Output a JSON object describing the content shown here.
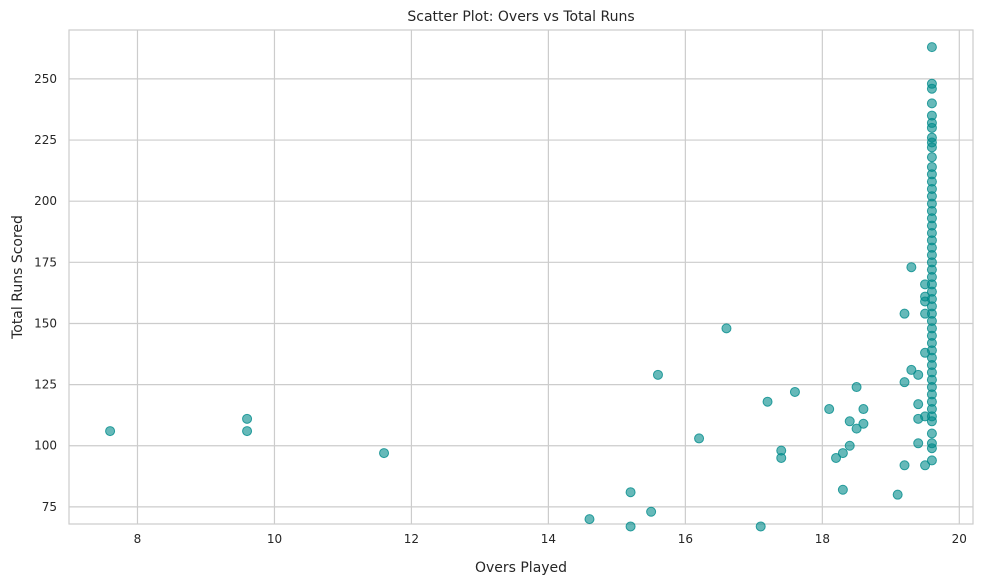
{
  "chart_data": {
    "type": "scatter",
    "title": "Scatter Plot: Overs vs Total Runs",
    "xlabel": "Overs Played",
    "ylabel": "Total Runs Scored",
    "xlim": [
      7,
      20.2
    ],
    "ylim": [
      68,
      270
    ],
    "xticks": [
      8,
      10,
      12,
      14,
      16,
      18,
      20
    ],
    "yticks": [
      75,
      100,
      125,
      150,
      175,
      200,
      225,
      250
    ],
    "grid": true,
    "point_color": "#008b8b",
    "point_alpha": 0.6,
    "points": [
      [
        7.6,
        106
      ],
      [
        9.6,
        111
      ],
      [
        9.6,
        106
      ],
      [
        11.6,
        97
      ],
      [
        14.6,
        70
      ],
      [
        15.2,
        81
      ],
      [
        15.2,
        67
      ],
      [
        15.5,
        73
      ],
      [
        15.6,
        129
      ],
      [
        16.2,
        103
      ],
      [
        16.6,
        148
      ],
      [
        17.1,
        67
      ],
      [
        17.2,
        118
      ],
      [
        17.4,
        98
      ],
      [
        17.4,
        95
      ],
      [
        17.6,
        122
      ],
      [
        18.1,
        115
      ],
      [
        18.2,
        95
      ],
      [
        18.3,
        97
      ],
      [
        18.3,
        82
      ],
      [
        18.4,
        110
      ],
      [
        18.4,
        100
      ],
      [
        18.5,
        124
      ],
      [
        18.5,
        107
      ],
      [
        18.6,
        115
      ],
      [
        18.6,
        109
      ],
      [
        19.1,
        80
      ],
      [
        19.2,
        154
      ],
      [
        19.2,
        126
      ],
      [
        19.2,
        92
      ],
      [
        19.3,
        173
      ],
      [
        19.3,
        131
      ],
      [
        19.4,
        129
      ],
      [
        19.4,
        117
      ],
      [
        19.4,
        111
      ],
      [
        19.4,
        101
      ],
      [
        19.5,
        166
      ],
      [
        19.5,
        161
      ],
      [
        19.5,
        159
      ],
      [
        19.5,
        154
      ],
      [
        19.5,
        138
      ],
      [
        19.5,
        112
      ],
      [
        19.5,
        92
      ],
      [
        19.6,
        263
      ],
      [
        19.6,
        248
      ],
      [
        19.6,
        246
      ],
      [
        19.6,
        240
      ],
      [
        19.6,
        235
      ],
      [
        19.6,
        232
      ],
      [
        19.6,
        230
      ],
      [
        19.6,
        226
      ],
      [
        19.6,
        224
      ],
      [
        19.6,
        222
      ],
      [
        19.6,
        218
      ],
      [
        19.6,
        214
      ],
      [
        19.6,
        211
      ],
      [
        19.6,
        208
      ],
      [
        19.6,
        205
      ],
      [
        19.6,
        202
      ],
      [
        19.6,
        199
      ],
      [
        19.6,
        196
      ],
      [
        19.6,
        193
      ],
      [
        19.6,
        190
      ],
      [
        19.6,
        187
      ],
      [
        19.6,
        184
      ],
      [
        19.6,
        181
      ],
      [
        19.6,
        178
      ],
      [
        19.6,
        175
      ],
      [
        19.6,
        172
      ],
      [
        19.6,
        169
      ],
      [
        19.6,
        166
      ],
      [
        19.6,
        163
      ],
      [
        19.6,
        160
      ],
      [
        19.6,
        157
      ],
      [
        19.6,
        154
      ],
      [
        19.6,
        151
      ],
      [
        19.6,
        148
      ],
      [
        19.6,
        145
      ],
      [
        19.6,
        142
      ],
      [
        19.6,
        139
      ],
      [
        19.6,
        136
      ],
      [
        19.6,
        133
      ],
      [
        19.6,
        130
      ],
      [
        19.6,
        127
      ],
      [
        19.6,
        124
      ],
      [
        19.6,
        121
      ],
      [
        19.6,
        118
      ],
      [
        19.6,
        115
      ],
      [
        19.6,
        112
      ],
      [
        19.6,
        110
      ],
      [
        19.6,
        105
      ],
      [
        19.6,
        101
      ],
      [
        19.6,
        99
      ],
      [
        19.6,
        94
      ]
    ]
  }
}
